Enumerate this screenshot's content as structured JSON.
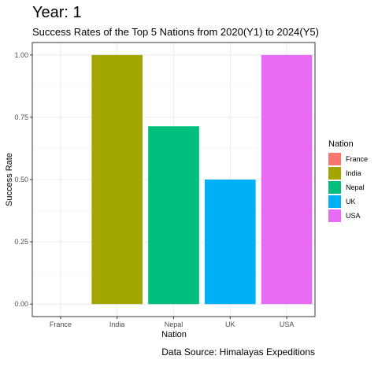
{
  "chart_data": {
    "type": "bar",
    "title": "Year: 1",
    "subtitle": "Success Rates of the Top 5 Nations from 2020(Y1) to 2024(Y5)",
    "caption": "Data Source: Himalayas Expeditions",
    "xlabel": "Nation",
    "ylabel": "Success Rate",
    "ylim": [
      -0.05,
      1.05
    ],
    "yticks": [
      0.0,
      0.25,
      0.5,
      0.75,
      1.0
    ],
    "ytick_labels": [
      "0.00",
      "0.25",
      "0.50",
      "0.75",
      "1.00"
    ],
    "categories": [
      "France",
      "India",
      "Nepal",
      "UK",
      "USA"
    ],
    "values": [
      0.0,
      1.0,
      0.714,
      0.5,
      1.0
    ],
    "colors": [
      "#F8766D",
      "#A3A500",
      "#00BF7D",
      "#00B0F6",
      "#E76BF3"
    ],
    "grid": true,
    "legend": {
      "title": "Nation",
      "position": "right",
      "entries": [
        "France",
        "India",
        "Nepal",
        "UK",
        "USA"
      ]
    }
  }
}
